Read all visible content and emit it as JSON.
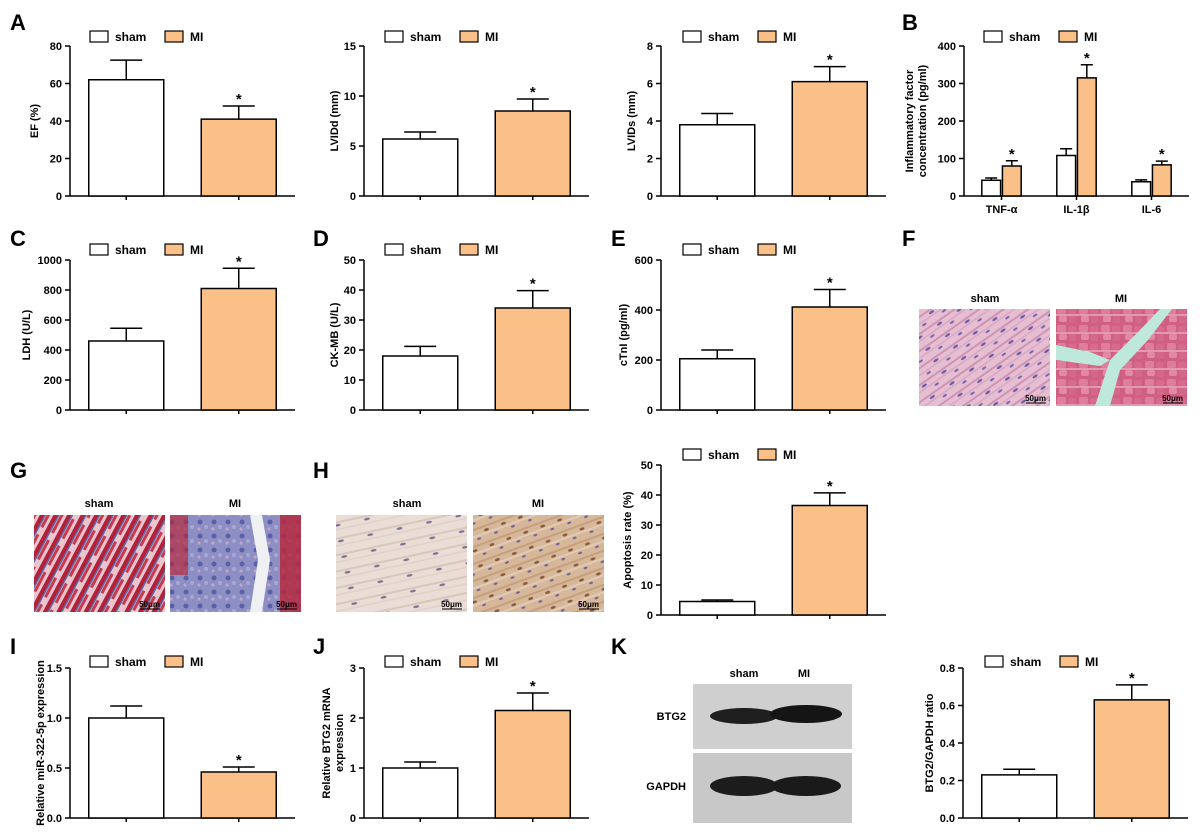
{
  "colors": {
    "sham": "#ffffff",
    "mi": "#fac088",
    "stroke": "#000000"
  },
  "legend": {
    "sham": "sham",
    "mi": "MI"
  },
  "panel_labels": {
    "A": "A",
    "B": "B",
    "C": "C",
    "D": "D",
    "E": "E",
    "F": "F",
    "G": "G",
    "H": "H",
    "I": "I",
    "J": "J",
    "K": "K"
  },
  "chart_data": [
    {
      "id": "ef",
      "type": "bar",
      "panel": "A",
      "ylabel": "EF (%)",
      "ylim": [
        0,
        80
      ],
      "yticks": [
        0,
        20,
        40,
        60,
        80
      ],
      "categories": [
        "sham",
        "MI"
      ],
      "values": [
        62,
        41
      ],
      "errors": [
        10.5,
        7
      ],
      "significant": [
        false,
        true
      ]
    },
    {
      "id": "lvidd",
      "type": "bar",
      "ylabel": "LVIDd (mm)",
      "ylim": [
        0,
        15
      ],
      "yticks": [
        0,
        5,
        10,
        15
      ],
      "categories": [
        "sham",
        "MI"
      ],
      "values": [
        5.7,
        8.5
      ],
      "errors": [
        0.7,
        1.2
      ],
      "significant": [
        false,
        true
      ]
    },
    {
      "id": "lvids",
      "type": "bar",
      "ylabel": "LVIDs (mm)",
      "ylim": [
        0,
        8
      ],
      "yticks": [
        0,
        2,
        4,
        6,
        8
      ],
      "categories": [
        "sham",
        "MI"
      ],
      "values": [
        3.8,
        6.1
      ],
      "errors": [
        0.6,
        0.8
      ],
      "significant": [
        false,
        true
      ]
    },
    {
      "id": "inflam",
      "type": "bar",
      "panel": "B",
      "ylabel": [
        "Inflammatory factor",
        "concentration (pg/ml)"
      ],
      "ylim": [
        0,
        400
      ],
      "yticks": [
        0,
        100,
        200,
        300,
        400
      ],
      "categories": [
        "TNF-α",
        "IL-1β",
        "IL-6"
      ],
      "series": [
        {
          "name": "sham",
          "values": [
            42,
            108,
            38
          ],
          "errors": [
            6,
            18,
            5
          ]
        },
        {
          "name": "MI",
          "values": [
            80,
            315,
            83
          ],
          "errors": [
            14,
            35,
            10
          ]
        }
      ],
      "significant": [
        true,
        true,
        true
      ]
    },
    {
      "id": "ldh",
      "type": "bar",
      "panel": "C",
      "ylabel": "LDH (U/L)",
      "ylim": [
        0,
        1000
      ],
      "yticks": [
        0,
        200,
        400,
        600,
        800,
        1000
      ],
      "categories": [
        "sham",
        "MI"
      ],
      "values": [
        460,
        810
      ],
      "errors": [
        85,
        135
      ],
      "significant": [
        false,
        true
      ]
    },
    {
      "id": "ckmb",
      "type": "bar",
      "panel": "D",
      "ylabel": "CK-MB (U/L)",
      "ylim": [
        0,
        50
      ],
      "yticks": [
        0,
        10,
        20,
        30,
        40,
        50
      ],
      "categories": [
        "sham",
        "MI"
      ],
      "values": [
        18,
        34
      ],
      "errors": [
        3.2,
        5.8
      ],
      "significant": [
        false,
        true
      ]
    },
    {
      "id": "ctni",
      "type": "bar",
      "panel": "E",
      "ylabel": "cTnI (pg/ml)",
      "ylim": [
        0,
        600
      ],
      "yticks": [
        0,
        200,
        400,
        600
      ],
      "categories": [
        "sham",
        "MI"
      ],
      "values": [
        205,
        412
      ],
      "errors": [
        35,
        70
      ],
      "significant": [
        false,
        true
      ]
    },
    {
      "id": "apop",
      "type": "bar",
      "ylabel": "Apoptosis rate (%)",
      "ylim": [
        0,
        50
      ],
      "yticks": [
        0,
        10,
        20,
        30,
        40,
        50
      ],
      "categories": [
        "sham",
        "MI"
      ],
      "values": [
        4.5,
        36.5
      ],
      "errors": [
        0.5,
        4.2
      ],
      "significant": [
        false,
        true
      ]
    },
    {
      "id": "mir",
      "type": "bar",
      "panel": "I",
      "ylabel": "Relative miR-322-5p expression",
      "ylim": [
        0,
        1.5
      ],
      "yticks": [
        0.0,
        0.5,
        1.0,
        1.5
      ],
      "categories": [
        "sham",
        "MI"
      ],
      "values": [
        1.0,
        0.46
      ],
      "errors": [
        0.12,
        0.05
      ],
      "significant": [
        false,
        true
      ]
    },
    {
      "id": "btg2mrna",
      "type": "bar",
      "panel": "J",
      "ylabel": [
        "Relative BTG2 mRNA",
        "expression"
      ],
      "ylim": [
        0,
        3
      ],
      "yticks": [
        0,
        1,
        2,
        3
      ],
      "categories": [
        "sham",
        "MI"
      ],
      "values": [
        1.0,
        2.15
      ],
      "errors": [
        0.12,
        0.35
      ],
      "significant": [
        false,
        true
      ]
    },
    {
      "id": "btg2ratio",
      "type": "bar",
      "ylabel": "BTG2/GAPDH ratio",
      "ylim": [
        0,
        0.8
      ],
      "yticks": [
        0.0,
        0.2,
        0.4,
        0.6,
        0.8
      ],
      "categories": [
        "sham",
        "MI"
      ],
      "values": [
        0.23,
        0.63
      ],
      "errors": [
        0.03,
        0.08
      ],
      "significant": [
        false,
        true
      ]
    }
  ],
  "images": {
    "he": {
      "sham": "sham",
      "mi": "MI",
      "scale": "50μm"
    },
    "masson": {
      "sham": "sham",
      "mi": "MI",
      "scale": "50μm"
    },
    "tunel": {
      "sham": "sham",
      "mi": "MI",
      "scale": "50μm"
    },
    "western": {
      "sham": "sham",
      "mi": "MI",
      "rows": [
        "BTG2",
        "GAPDH"
      ]
    }
  }
}
